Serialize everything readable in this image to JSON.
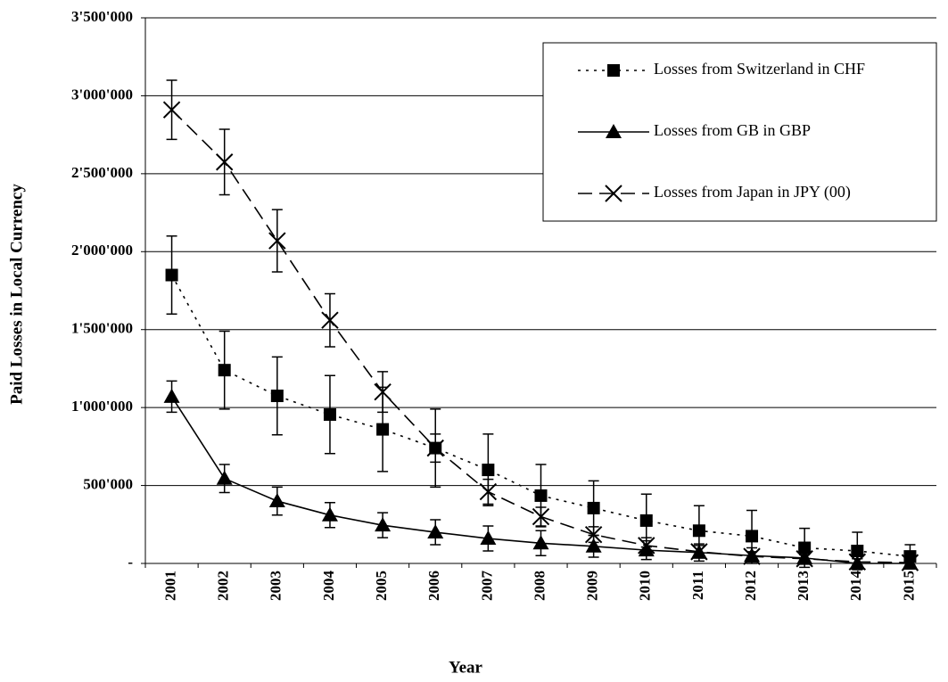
{
  "chart_data": {
    "type": "line",
    "x_label": "Year",
    "y_label": "Paid Losses in Local Currency",
    "categories": [
      "2001",
      "2002",
      "2003",
      "2004",
      "2005",
      "2006",
      "2007",
      "2008",
      "2009",
      "2010",
      "2011",
      "2012",
      "2013",
      "2014",
      "2015"
    ],
    "ylim": [
      0,
      3500000
    ],
    "yticks": [
      {
        "value": 0,
        "label": "-"
      },
      {
        "value": 500000,
        "label": "500'000"
      },
      {
        "value": 1000000,
        "label": "1'000'000"
      },
      {
        "value": 1500000,
        "label": "1'500'000"
      },
      {
        "value": 2000000,
        "label": "2'000'000"
      },
      {
        "value": 2500000,
        "label": "2'500'000"
      },
      {
        "value": 3000000,
        "label": "3'000'000"
      },
      {
        "value": 3500000,
        "label": "3'500'000"
      }
    ],
    "grid": true,
    "legend": "upper right",
    "series": [
      {
        "name": "Losses from Switzerland in CHF",
        "color": "#000000",
        "dash": "dotted",
        "marker": "square",
        "values": [
          1850000,
          1240000,
          1075000,
          955000,
          860000,
          740000,
          600000,
          435000,
          355000,
          275000,
          210000,
          175000,
          100000,
          80000,
          45000
        ],
        "errors": [
          250000,
          250000,
          250000,
          250000,
          270000,
          250000,
          230000,
          200000,
          175000,
          170000,
          160000,
          165000,
          125000,
          120000,
          75000
        ]
      },
      {
        "name": "Losses from GB in GBP",
        "color": "#000000",
        "dash": "solid",
        "marker": "triangle",
        "values": [
          1070000,
          545000,
          400000,
          310000,
          245000,
          200000,
          160000,
          130000,
          110000,
          85000,
          70000,
          50000,
          35000,
          0,
          0
        ],
        "errors": [
          100000,
          90000,
          90000,
          80000,
          80000,
          80000,
          80000,
          80000,
          70000,
          60000,
          55000,
          50000,
          40000,
          30000,
          20000
        ]
      },
      {
        "name": "Losses from Japan in JPY (00)",
        "color": "#000000",
        "dash": "dashed",
        "marker": "x",
        "values": [
          2910000,
          2575000,
          2070000,
          1560000,
          1100000,
          740000,
          460000,
          300000,
          185000,
          115000,
          75000,
          45000,
          30000,
          10000,
          5000
        ],
        "errors": [
          190000,
          210000,
          200000,
          170000,
          130000,
          90000,
          80000,
          60000,
          50000,
          50000,
          40000,
          30000,
          25000,
          20000,
          15000
        ]
      }
    ]
  }
}
